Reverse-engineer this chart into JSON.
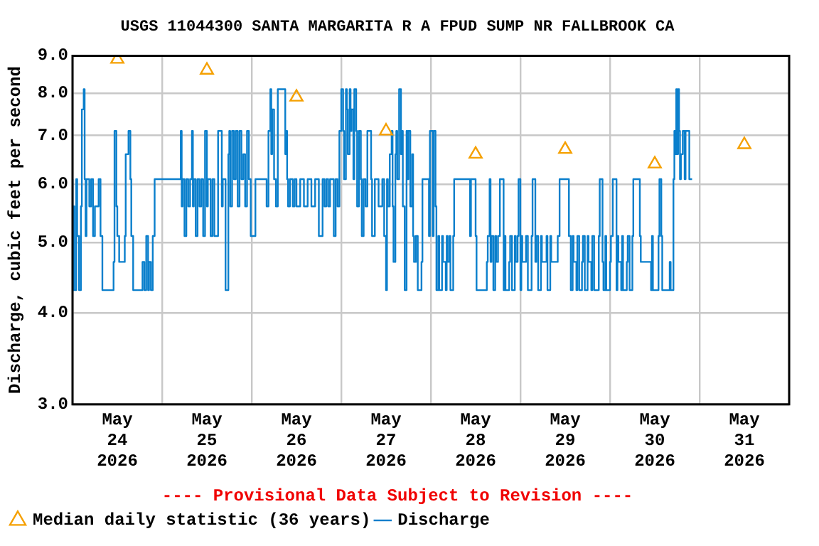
{
  "chart_data": {
    "type": "step",
    "title": "USGS 11044300 SANTA MARGARITA R A FPUD SUMP NR FALLBROOK CA",
    "ylabel": "Discharge, cubic feet per second",
    "annotations": [
      "---- Provisional Data Subject to Revision ----"
    ],
    "xlim": [
      "2026-05-24",
      "2026-06-01"
    ],
    "xticks": [
      {
        "value": "2026-05-24",
        "label": null
      },
      {
        "value": "2026-05-24T12:00",
        "label": "May 24 2026"
      },
      {
        "value": "2026-05-25",
        "label": null
      },
      {
        "value": "2026-05-25T12:00",
        "label": "May 25 2026"
      },
      {
        "value": "2026-05-26",
        "label": null
      },
      {
        "value": "2026-05-26T12:00",
        "label": "May 26 2026"
      },
      {
        "value": "2026-05-27",
        "label": null
      },
      {
        "value": "2026-05-27T12:00",
        "label": "May 27 2026"
      },
      {
        "value": "2026-05-28",
        "label": null
      },
      {
        "value": "2026-05-28T12:00",
        "label": "May 28 2026"
      },
      {
        "value": "2026-05-29",
        "label": null
      },
      {
        "value": "2026-05-29T12:00",
        "label": "May 29 2026"
      },
      {
        "value": "2026-05-30",
        "label": null
      },
      {
        "value": "2026-05-30T12:00",
        "label": "May 30 2026"
      },
      {
        "value": "2026-05-31",
        "label": null
      },
      {
        "value": "2026-05-31T12:00",
        "label": "May 31 2026"
      },
      {
        "value": "2026-06-01",
        "label": null
      }
    ],
    "ylim": [
      3,
      9
    ],
    "yticks": [
      {
        "value": 3,
        "label": "3.0"
      },
      {
        "value": 4,
        "label": "4.0"
      },
      {
        "value": 5,
        "label": "5.0"
      },
      {
        "value": 6,
        "label": "6.0"
      },
      {
        "value": 7,
        "label": "7.0"
      },
      {
        "value": 8,
        "label": "8.0"
      },
      {
        "value": 9,
        "label": "9.0"
      }
    ],
    "log": "y",
    "grid": true,
    "legend": "bottom",
    "line_style": "solid",
    "series": [
      {
        "name": "Median daily statistic (36 years)",
        "type": "scatter",
        "marker": "triangle",
        "color": "#f5a000",
        "x": [
          "2026-05-24T12:00",
          "2026-05-25T12:00",
          "2026-05-26T12:00",
          "2026-05-27T12:00",
          "2026-05-28T12:00",
          "2026-05-29T12:00",
          "2026-05-30T12:00",
          "2026-05-31T12:00"
        ],
        "values": [
          8.9,
          8.6,
          7.9,
          7.1,
          6.6,
          6.7,
          6.4,
          6.8
        ]
      },
      {
        "name": "Discharge",
        "marker": "none",
        "color": "#0a7fcc",
        "x": [
          "2026-05-24T00:00",
          "2026-05-24T00:15",
          "2026-05-24T00:30",
          "2026-05-24T01:00",
          "2026-05-24T01:15",
          "2026-05-24T01:45",
          "2026-05-24T02:15",
          "2026-05-24T02:30",
          "2026-05-24T03:00",
          "2026-05-24T03:15",
          "2026-05-24T03:30",
          "2026-05-24T03:45",
          "2026-05-24T04:30",
          "2026-05-24T05:00",
          "2026-05-24T05:30",
          "2026-05-24T06:00",
          "2026-05-24T07:00",
          "2026-05-24T07:30",
          "2026-05-24T08:00",
          "2026-05-24T11:00",
          "2026-05-24T11:15",
          "2026-05-24T11:45",
          "2026-05-24T12:00",
          "2026-05-24T12:30",
          "2026-05-24T14:00",
          "2026-05-24T14:15",
          "2026-05-24T15:00",
          "2026-05-24T15:30",
          "2026-05-24T15:45",
          "2026-05-24T16:15",
          "2026-05-24T18:45",
          "2026-05-24T19:15",
          "2026-05-24T19:45",
          "2026-05-24T20:15",
          "2026-05-24T20:30",
          "2026-05-24T21:00",
          "2026-05-24T21:30",
          "2026-05-24T22:00",
          "2026-05-25T05:00",
          "2026-05-25T05:15",
          "2026-05-25T05:30",
          "2026-05-25T06:00",
          "2026-05-25T06:30",
          "2026-05-25T07:00",
          "2026-05-25T07:30",
          "2026-05-25T08:00",
          "2026-05-25T08:15",
          "2026-05-25T08:30",
          "2026-05-25T09:00",
          "2026-05-25T09:30",
          "2026-05-25T10:00",
          "2026-05-25T10:30",
          "2026-05-25T11:00",
          "2026-05-25T11:30",
          "2026-05-25T12:00",
          "2026-05-25T12:15",
          "2026-05-25T13:00",
          "2026-05-25T13:30",
          "2026-05-25T14:00",
          "2026-05-25T15:00",
          "2026-05-25T16:00",
          "2026-05-25T16:15",
          "2026-05-25T17:00",
          "2026-05-25T17:45",
          "2026-05-25T18:00",
          "2026-05-25T18:15",
          "2026-05-25T18:45",
          "2026-05-25T19:15",
          "2026-05-25T19:45",
          "2026-05-25T20:15",
          "2026-05-25T20:45",
          "2026-05-25T21:15",
          "2026-05-25T21:45",
          "2026-05-25T22:15",
          "2026-05-25T22:45",
          "2026-05-25T23:15",
          "2026-05-25T23:45",
          "2026-05-26T01:00",
          "2026-05-26T04:00",
          "2026-05-26T04:30",
          "2026-05-26T05:00",
          "2026-05-26T05:15",
          "2026-05-26T05:30",
          "2026-05-26T06:00",
          "2026-05-26T06:30",
          "2026-05-26T07:00",
          "2026-05-26T09:00",
          "2026-05-26T09:15",
          "2026-05-26T09:30",
          "2026-05-26T09:45",
          "2026-05-26T10:15",
          "2026-05-26T11:00",
          "2026-05-26T11:30",
          "2026-05-26T12:00",
          "2026-05-26T13:00",
          "2026-05-26T14:00",
          "2026-05-26T15:00",
          "2026-05-26T16:00",
          "2026-05-26T17:00",
          "2026-05-26T18:00",
          "2026-05-26T19:00",
          "2026-05-26T19:30",
          "2026-05-26T20:00",
          "2026-05-26T20:30",
          "2026-05-26T21:00",
          "2026-05-26T22:00",
          "2026-05-26T22:30",
          "2026-05-26T23:00",
          "2026-05-26T23:30",
          "2026-05-27T00:00",
          "2026-05-27T00:30",
          "2026-05-27T00:45",
          "2026-05-27T01:15",
          "2026-05-27T01:30",
          "2026-05-27T01:45",
          "2026-05-27T02:15",
          "2026-05-27T02:30",
          "2026-05-27T02:45",
          "2026-05-27T03:15",
          "2026-05-27T03:30",
          "2026-05-27T04:00",
          "2026-05-27T04:15",
          "2026-05-27T04:45",
          "2026-05-27T05:15",
          "2026-05-27T05:30",
          "2026-05-27T06:00",
          "2026-05-27T06:30",
          "2026-05-27T07:00",
          "2026-05-27T08:00",
          "2026-05-27T08:15",
          "2026-05-27T09:00",
          "2026-05-27T10:00",
          "2026-05-27T11:00",
          "2026-05-27T11:30",
          "2026-05-27T12:00",
          "2026-05-27T12:15",
          "2026-05-27T12:30",
          "2026-05-27T13:00",
          "2026-05-27T13:30",
          "2026-05-27T13:45",
          "2026-05-27T14:00",
          "2026-05-27T14:30",
          "2026-05-27T14:45",
          "2026-05-27T15:00",
          "2026-05-27T15:30",
          "2026-05-27T16:00",
          "2026-05-27T16:15",
          "2026-05-27T16:30",
          "2026-05-27T17:00",
          "2026-05-27T17:30",
          "2026-05-27T17:45",
          "2026-05-27T18:00",
          "2026-05-27T18:30",
          "2026-05-27T19:00",
          "2026-05-27T19:15",
          "2026-05-27T19:30",
          "2026-05-27T20:00",
          "2026-05-27T20:30",
          "2026-05-27T21:30",
          "2026-05-27T21:45",
          "2026-05-27T23:30",
          "2026-05-27T23:45",
          "2026-05-28T00:30",
          "2026-05-28T00:45",
          "2026-05-28T01:15",
          "2026-05-28T01:30",
          "2026-05-28T02:00",
          "2026-05-28T02:15",
          "2026-05-28T03:00",
          "2026-05-28T03:15",
          "2026-05-28T04:00",
          "2026-05-28T04:15",
          "2026-05-28T04:30",
          "2026-05-28T05:00",
          "2026-05-28T05:15",
          "2026-05-28T06:00",
          "2026-05-28T06:15",
          "2026-05-28T10:30",
          "2026-05-28T10:45",
          "2026-05-28T12:00",
          "2026-05-28T12:15",
          "2026-05-28T15:00",
          "2026-05-28T15:15",
          "2026-05-28T15:45",
          "2026-05-28T16:00",
          "2026-05-28T16:15",
          "2026-05-28T16:45",
          "2026-05-28T17:15",
          "2026-05-28T17:30",
          "2026-05-28T18:00",
          "2026-05-28T18:30",
          "2026-05-28T19:30",
          "2026-05-28T19:45",
          "2026-05-28T20:00",
          "2026-05-28T21:00",
          "2026-05-28T21:15",
          "2026-05-28T21:45",
          "2026-05-28T22:30",
          "2026-05-28T22:45",
          "2026-05-28T23:15",
          "2026-05-28T23:30",
          "2026-05-29T00:00",
          "2026-05-29T00:15",
          "2026-05-29T00:30",
          "2026-05-29T01:30",
          "2026-05-29T02:00",
          "2026-05-29T03:00",
          "2026-05-29T03:15",
          "2026-05-29T04:00",
          "2026-05-29T04:15",
          "2026-05-29T04:45",
          "2026-05-29T05:30",
          "2026-05-29T05:45",
          "2026-05-29T07:00",
          "2026-05-29T07:15",
          "2026-05-29T08:00",
          "2026-05-29T08:15",
          "2026-05-29T10:00",
          "2026-05-29T10:30",
          "2026-05-29T13:00",
          "2026-05-29T13:30",
          "2026-05-29T14:00",
          "2026-05-29T14:15",
          "2026-05-29T15:00",
          "2026-05-29T15:15",
          "2026-05-29T15:45",
          "2026-05-29T16:30",
          "2026-05-29T16:45",
          "2026-05-29T17:15",
          "2026-05-29T18:00",
          "2026-05-29T18:15",
          "2026-05-29T19:00",
          "2026-05-29T19:15",
          "2026-05-29T19:45",
          "2026-05-29T21:00",
          "2026-05-29T21:15",
          "2026-05-29T22:00",
          "2026-05-29T22:15",
          "2026-05-29T22:45",
          "2026-05-29T23:00",
          "2026-05-30T00:00",
          "2026-05-30T00:15",
          "2026-05-30T00:45",
          "2026-05-30T01:45",
          "2026-05-30T02:00",
          "2026-05-30T02:15",
          "2026-05-30T03:00",
          "2026-05-30T03:15",
          "2026-05-30T03:30",
          "2026-05-30T04:30",
          "2026-05-30T04:45",
          "2026-05-30T05:15",
          "2026-05-30T06:00",
          "2026-05-30T06:15",
          "2026-05-30T08:00",
          "2026-05-30T08:15",
          "2026-05-30T11:00",
          "2026-05-30T11:15",
          "2026-05-30T11:30",
          "2026-05-30T13:00",
          "2026-05-30T13:15",
          "2026-05-30T13:45",
          "2026-05-30T14:00",
          "2026-05-30T16:00",
          "2026-05-30T16:15",
          "2026-05-30T17:00",
          "2026-05-30T17:15",
          "2026-05-30T17:30",
          "2026-05-30T17:45",
          "2026-05-30T18:00",
          "2026-05-30T18:15",
          "2026-05-30T18:30",
          "2026-05-30T18:45",
          "2026-05-30T19:00",
          "2026-05-30T19:30",
          "2026-05-30T20:00",
          "2026-05-30T20:15",
          "2026-05-30T21:15",
          "2026-05-30T21:30",
          "2026-05-30T22:00"
        ],
        "values": [
          6.1,
          4.3,
          5.6,
          4.3,
          6.1,
          5.1,
          4.3,
          5.6,
          7.6,
          8.1,
          6.1,
          5.1,
          6.1,
          5.6,
          6.1,
          5.1,
          5.6,
          6.1,
          5.1,
          4.3,
          4.7,
          7.1,
          5.6,
          5.1,
          4.7,
          5.1,
          6.6,
          7.1,
          6.1,
          5.1,
          4.3,
          4.7,
          4.3,
          5.1,
          4.3,
          4.7,
          4.3,
          5.1,
          6.1,
          7.1,
          5.6,
          6.1,
          5.1,
          6.1,
          5.6,
          6.1,
          7.1,
          5.6,
          6.1,
          5.1,
          6.1,
          5.6,
          6.1,
          5.1,
          7.1,
          5.6,
          6.1,
          5.1,
          6.1,
          5.1,
          7.1,
          5.6,
          6.1,
          4.3,
          6.6,
          7.1,
          5.6,
          7.1,
          6.1,
          7.1,
          5.6,
          7.1,
          6.1,
          6.6,
          5.6,
          7.1,
          6.1,
          5.1,
          6.1,
          5.6,
          7.1,
          8.1,
          6.6,
          7.6,
          6.1,
          5.6,
          8.1,
          6.6,
          7.1,
          6.1,
          5.6,
          6.1,
          5.6,
          6.1,
          5.6,
          6.1,
          5.6,
          6.1,
          5.6,
          6.1,
          5.1,
          6.1,
          5.6,
          6.1,
          5.6,
          6.1,
          5.1,
          6.1,
          5.6,
          7.1,
          8.1,
          7.1,
          6.1,
          8.1,
          7.6,
          6.6,
          8.1,
          7.1,
          7.6,
          6.1,
          8.1,
          7.1,
          5.6,
          7.1,
          6.1,
          5.1,
          6.1,
          5.6,
          7.1,
          6.1,
          5.1,
          6.1,
          5.6,
          6.1,
          5.1,
          4.3,
          6.1,
          5.6,
          6.6,
          7.1,
          5.6,
          4.7,
          6.6,
          7.1,
          6.1,
          8.1,
          6.6,
          7.1,
          5.6,
          4.3,
          7.1,
          6.1,
          7.1,
          5.6,
          6.6,
          5.1,
          4.7,
          5.1,
          4.3,
          4.7,
          6.1,
          5.1,
          7.1,
          5.1,
          7.1,
          5.6,
          4.3,
          5.1,
          4.3,
          5.1,
          4.7,
          4.3,
          5.1,
          4.7,
          5.1,
          4.3,
          5.1,
          6.1,
          5.1,
          6.1,
          5.1,
          4.3,
          4.7,
          5.1,
          6.1,
          4.7,
          5.1,
          4.3,
          5.1,
          4.7,
          5.1,
          6.1,
          4.3,
          5.1,
          4.3,
          4.7,
          5.1,
          4.3,
          5.1,
          4.7,
          5.1,
          6.1,
          4.3,
          5.1,
          4.7,
          5.1,
          4.3,
          5.1,
          6.1,
          4.7,
          5.1,
          4.3,
          5.1,
          4.7,
          5.1,
          4.3,
          5.1,
          4.7,
          5.1,
          6.1,
          5.1,
          4.3,
          5.1,
          4.7,
          4.3,
          5.1,
          4.3,
          4.7,
          5.1,
          4.3,
          5.1,
          4.7,
          4.3,
          5.1,
          4.3,
          5.1,
          6.1,
          4.7,
          4.3,
          5.1,
          4.3,
          4.7,
          5.1,
          6.1,
          4.3,
          5.1,
          4.7,
          4.3,
          5.1,
          4.3,
          4.7,
          5.1,
          4.3,
          5.1,
          6.1,
          5.1,
          4.7,
          4.3,
          5.1,
          4.3,
          5.1,
          6.1,
          5.1,
          4.3,
          4.7,
          4.3,
          6.1,
          7.1,
          6.6,
          8.1,
          6.6,
          8.1,
          7.1,
          6.1,
          6.6,
          7.1,
          6.1,
          7.1,
          6.1,
          6.1
        ]
      }
    ]
  }
}
